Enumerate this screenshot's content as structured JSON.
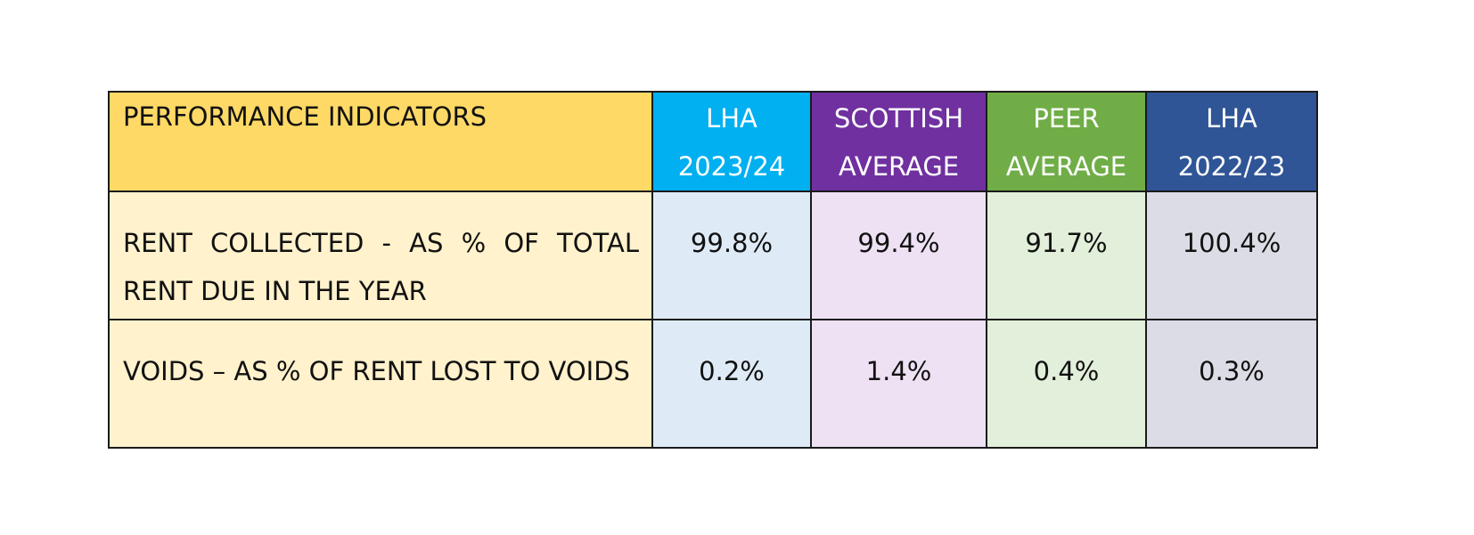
{
  "table": {
    "header": {
      "label": "PERFORMANCE INDICATORS",
      "columns": [
        {
          "line1": "LHA",
          "line2": "2023/24",
          "color": "#00B0F0"
        },
        {
          "line1": "SCOTTISH",
          "line2": "AVERAGE",
          "color": "#7030A0"
        },
        {
          "line1": "PEER",
          "line2": "AVERAGE",
          "color": "#70AD47"
        },
        {
          "line1": "LHA",
          "line2": "2022/23",
          "color": "#2F5597"
        }
      ],
      "label_color": "#FFD966"
    },
    "rows": [
      {
        "label": "RENT COLLECTED - AS % OF TOTAL RENT DUE IN THE YEAR",
        "values": [
          "99.8%",
          "99.4%",
          "91.7%",
          "100.4%"
        ]
      },
      {
        "label": "VOIDS – AS % OF RENT LOST TO VOIDS",
        "values": [
          "0.2%",
          "1.4%",
          "0.4%",
          "0.3%"
        ]
      }
    ],
    "body_colors": {
      "label": "#FFF2CC",
      "columns": [
        "#DEEBF7",
        "#EEE1F3",
        "#E2EFDA",
        "#DCDCE6"
      ]
    }
  }
}
